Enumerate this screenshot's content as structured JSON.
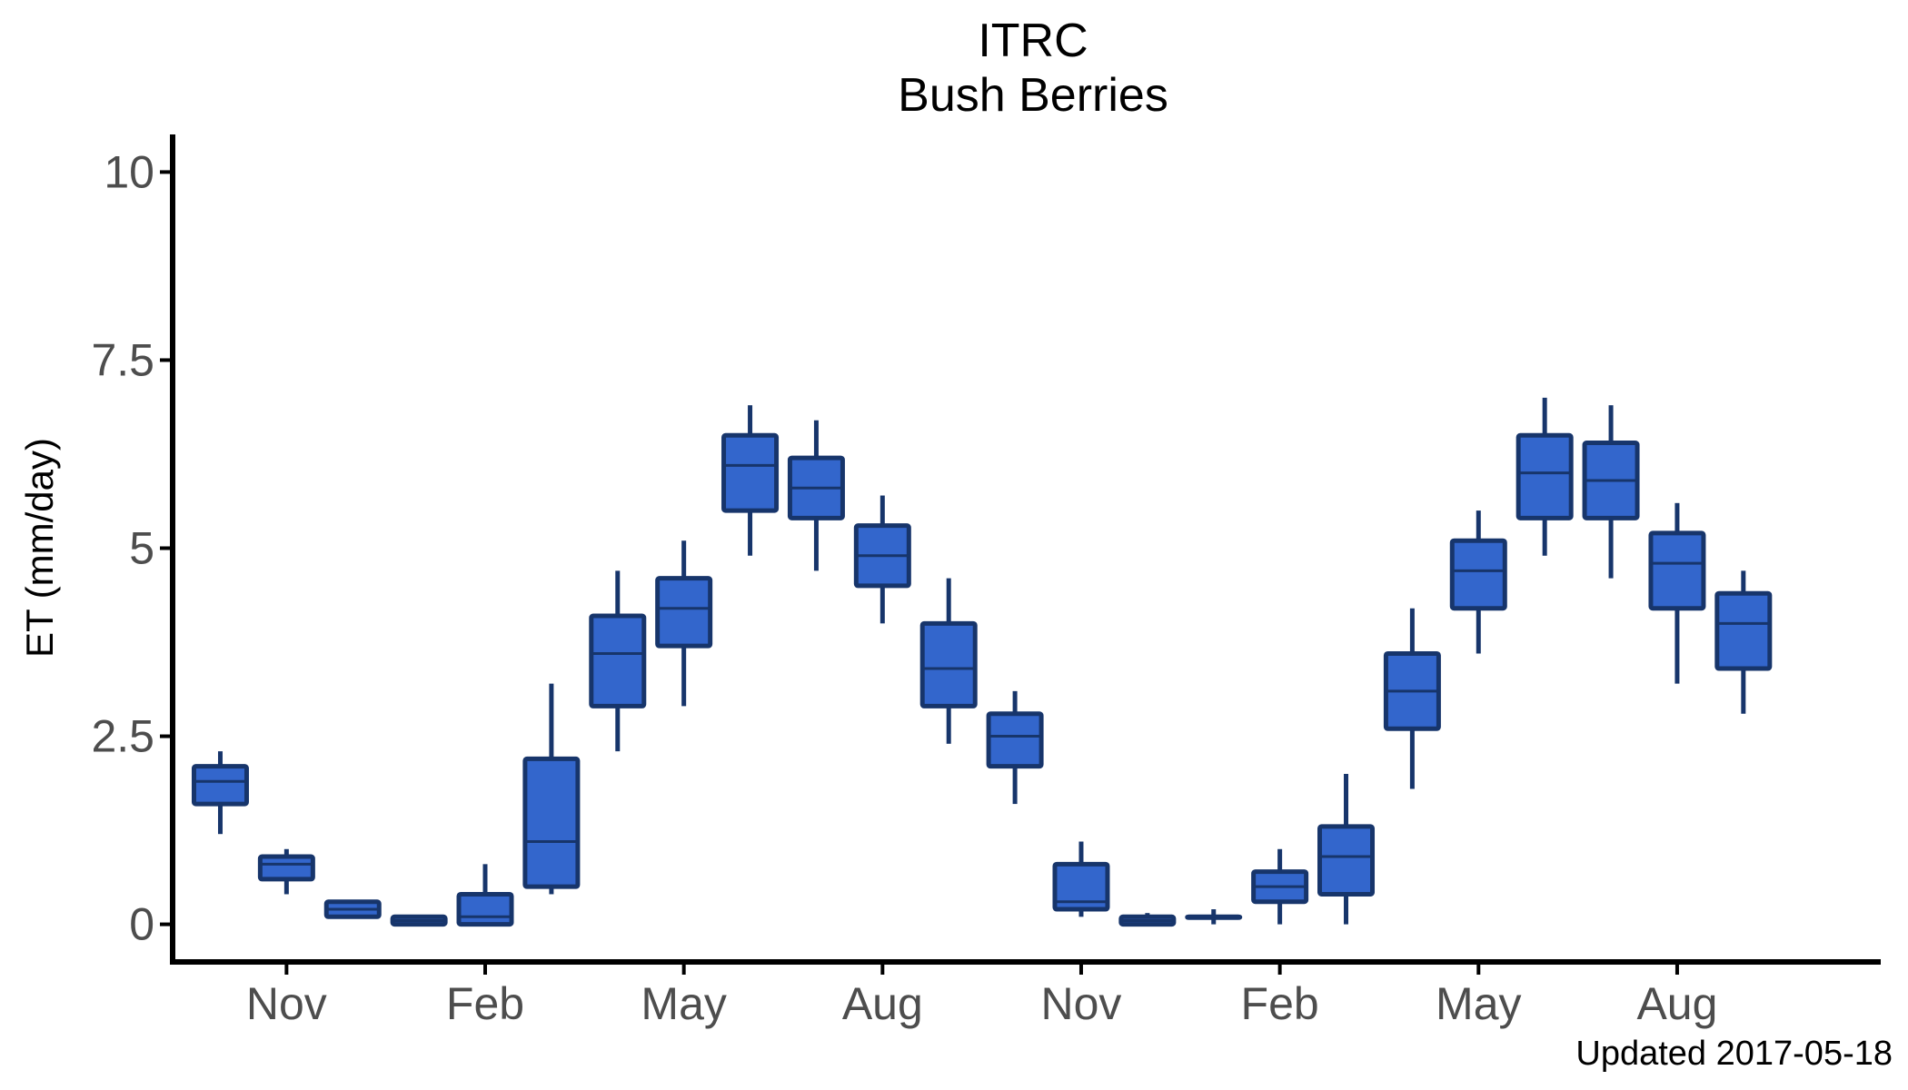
{
  "chart_data": {
    "type": "box",
    "title": "ITRC",
    "subtitle": "Bush Berries",
    "ylabel": "ET (mm/day)",
    "xlabel": "",
    "caption": "Updated  2017-05-18",
    "ylim": [
      -0.5,
      10.5
    ],
    "yticks": [
      0,
      2.5,
      5,
      7.5,
      10
    ],
    "ytick_labels": [
      "0",
      "2.5",
      "5",
      "7.5",
      "10"
    ],
    "x_range": [
      0.28,
      26.28
    ],
    "xticks": [
      {
        "x": 2,
        "label": "Nov"
      },
      {
        "x": 5,
        "label": "Feb"
      },
      {
        "x": 8,
        "label": "May"
      },
      {
        "x": 11,
        "label": "Aug"
      },
      {
        "x": 14,
        "label": "Nov"
      },
      {
        "x": 17,
        "label": "Feb"
      },
      {
        "x": 20,
        "label": "May"
      },
      {
        "x": 23,
        "label": "Aug"
      }
    ],
    "grid": false,
    "colors": {
      "fill": "#3366cc",
      "outline": "#17356b",
      "axis": "#000000"
    },
    "boxes": [
      {
        "x": 1,
        "min": 1.2,
        "q1": 1.6,
        "median": 1.9,
        "q3": 2.1,
        "max": 2.3
      },
      {
        "x": 2,
        "min": 0.4,
        "q1": 0.6,
        "median": 0.8,
        "q3": 0.9,
        "max": 1.0
      },
      {
        "x": 3,
        "min": 0.1,
        "q1": 0.1,
        "median": 0.2,
        "q3": 0.3,
        "max": 0.3
      },
      {
        "x": 4,
        "min": 0.0,
        "q1": 0.0,
        "median": 0.05,
        "q3": 0.1,
        "max": 0.1
      },
      {
        "x": 5,
        "min": 0.0,
        "q1": 0.0,
        "median": 0.1,
        "q3": 0.4,
        "max": 0.8
      },
      {
        "x": 6,
        "min": 0.4,
        "q1": 0.5,
        "median": 1.1,
        "q3": 2.2,
        "max": 3.2
      },
      {
        "x": 7,
        "min": 2.3,
        "q1": 2.9,
        "median": 3.6,
        "q3": 4.1,
        "max": 4.7
      },
      {
        "x": 8,
        "min": 2.9,
        "q1": 3.7,
        "median": 4.2,
        "q3": 4.6,
        "max": 5.1
      },
      {
        "x": 9,
        "min": 4.9,
        "q1": 5.5,
        "median": 6.1,
        "q3": 6.5,
        "max": 6.9
      },
      {
        "x": 10,
        "min": 4.7,
        "q1": 5.4,
        "median": 5.8,
        "q3": 6.2,
        "max": 6.7
      },
      {
        "x": 11,
        "min": 4.0,
        "q1": 4.5,
        "median": 4.9,
        "q3": 5.3,
        "max": 5.7
      },
      {
        "x": 12,
        "min": 2.4,
        "q1": 2.9,
        "median": 3.4,
        "q3": 4.0,
        "max": 4.6
      },
      {
        "x": 13,
        "min": 1.6,
        "q1": 2.1,
        "median": 2.5,
        "q3": 2.8,
        "max": 3.1
      },
      {
        "x": 14,
        "min": 0.1,
        "q1": 0.2,
        "median": 0.3,
        "q3": 0.8,
        "max": 1.1
      },
      {
        "x": 15,
        "min": 0.0,
        "q1": 0.0,
        "median": 0.05,
        "q3": 0.1,
        "max": 0.15
      },
      {
        "x": 16,
        "min": 0.0,
        "q1": 0.1,
        "median": 0.1,
        "q3": 0.1,
        "max": 0.2
      },
      {
        "x": 17,
        "min": 0.0,
        "q1": 0.3,
        "median": 0.5,
        "q3": 0.7,
        "max": 1.0
      },
      {
        "x": 18,
        "min": 0.0,
        "q1": 0.4,
        "median": 0.9,
        "q3": 1.3,
        "max": 2.0
      },
      {
        "x": 19,
        "min": 1.8,
        "q1": 2.6,
        "median": 3.1,
        "q3": 3.6,
        "max": 4.2
      },
      {
        "x": 20,
        "min": 3.6,
        "q1": 4.2,
        "median": 4.7,
        "q3": 5.1,
        "max": 5.5
      },
      {
        "x": 21,
        "min": 4.9,
        "q1": 5.4,
        "median": 6.0,
        "q3": 6.5,
        "max": 7.0
      },
      {
        "x": 22,
        "min": 4.6,
        "q1": 5.4,
        "median": 5.9,
        "q3": 6.4,
        "max": 6.9
      },
      {
        "x": 23,
        "min": 3.2,
        "q1": 4.2,
        "median": 4.8,
        "q3": 5.2,
        "max": 5.6
      },
      {
        "x": 24,
        "min": 2.8,
        "q1": 3.4,
        "median": 4.0,
        "q3": 4.4,
        "max": 4.7
      }
    ]
  }
}
